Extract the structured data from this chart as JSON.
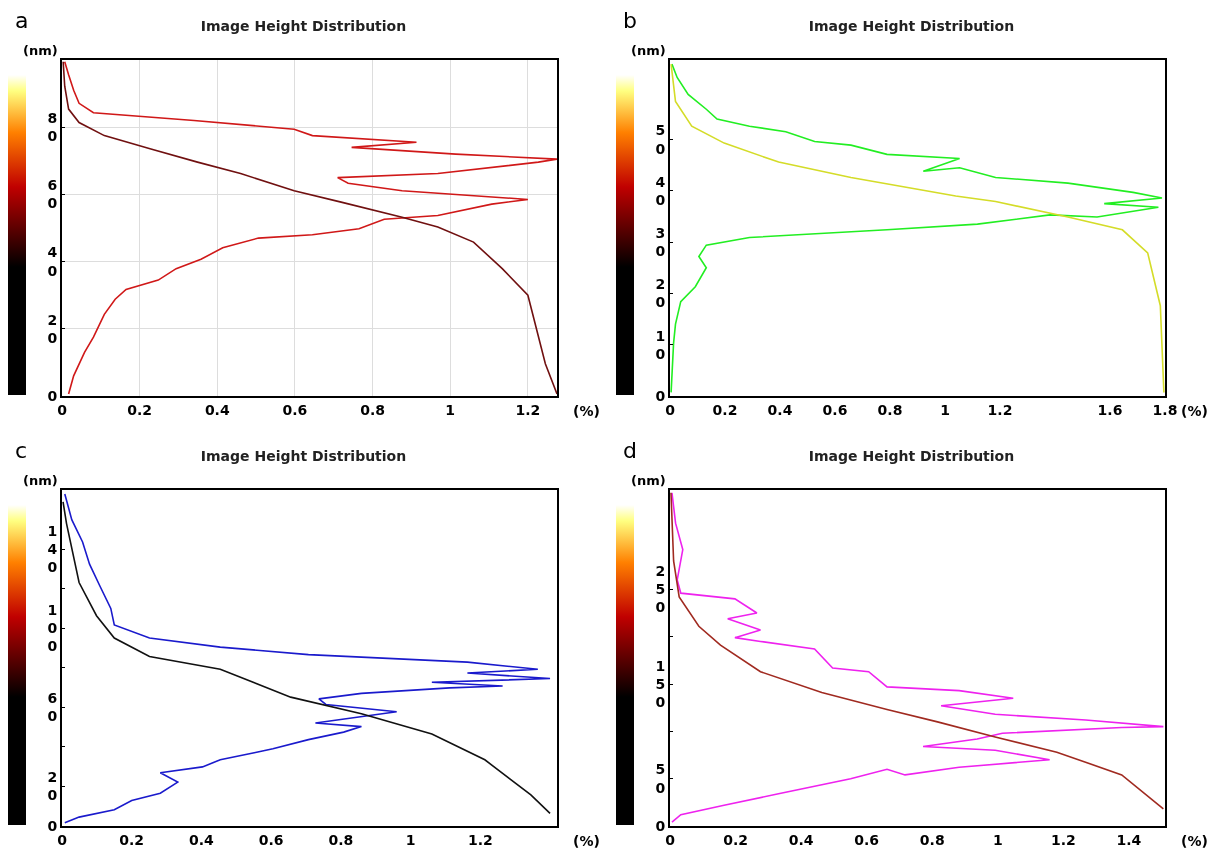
{
  "chart_data": [
    {
      "type": "line",
      "title": "Image Height Distribution",
      "xlabel": "(%)",
      "ylabel": "(nm)",
      "annotations": [
        "a"
      ],
      "grid": true,
      "xlim": [
        0,
        1.275
      ],
      "ylim": [
        0,
        100
      ],
      "xticks": [
        0,
        0.2,
        0.4,
        0.6,
        0.8,
        1.0,
        1.2
      ],
      "yticks": [
        0,
        20,
        40,
        60,
        80
      ],
      "series": [
        {
          "color": "#d01818",
          "x": [
            0.017,
            0.03,
            0.058,
            0.081,
            0.109,
            0.137,
            0.165,
            0.248,
            0.294,
            0.358,
            0.414,
            0.506,
            0.645,
            0.765,
            0.83,
            0.968,
            1.107,
            1.2,
            0.876,
            0.737,
            0.71,
            0.968,
            1.227,
            1.275,
            1.014,
            0.746,
            0.913,
            0.645,
            0.598,
            0.34,
            0.081,
            0.044,
            0.03,
            0.017,
            0.007
          ],
          "values": [
            0.6,
            6,
            13,
            17.5,
            24.3,
            28.8,
            31.7,
            34.5,
            37.9,
            40.7,
            44.1,
            47,
            48,
            49.8,
            52.6,
            53.7,
            57.1,
            58.5,
            61.1,
            63.3,
            65,
            66.2,
            69.6,
            70.5,
            72,
            74,
            75.5,
            77.5,
            79.4,
            82,
            84.3,
            87.1,
            91,
            95.6,
            99.5
          ]
        },
        {
          "color": "#701010",
          "x": [
            1.275,
            1.245,
            1.2,
            1.134,
            1.06,
            0.968,
            0.876,
            0.719,
            0.598,
            0.46,
            0.349,
            0.229,
            0.109,
            0.044,
            0.017,
            0.007,
            0.003
          ],
          "values": [
            0.6,
            9.6,
            30,
            37.9,
            45.8,
            50.3,
            53.2,
            57.7,
            61.1,
            66.2,
            69.6,
            73.5,
            77.5,
            81.4,
            85.4,
            92.2,
            99.5
          ]
        }
      ]
    },
    {
      "type": "line",
      "title": "Image Height Distribution",
      "xlabel": "(%)",
      "ylabel": "(nm)",
      "annotations": [
        "b"
      ],
      "xlim": [
        0,
        1.8
      ],
      "ylim": [
        0,
        65.5
      ],
      "xticks": [
        0,
        0.2,
        0.4,
        0.6,
        0.8,
        1.0,
        1.2,
        1.6,
        1.8
      ],
      "yticks": [
        0,
        10,
        20,
        30,
        40,
        50
      ],
      "series": [
        {
          "color": "#22ee22",
          "x": [
            0.004,
            0.013,
            0.02,
            0.039,
            0.092,
            0.132,
            0.105,
            0.132,
            0.289,
            0.789,
            1.118,
            1.382,
            1.553,
            1.776,
            1.579,
            1.789,
            1.684,
            1.447,
            1.184,
            1.053,
            0.921,
            1.053,
            0.789,
            0.658,
            0.526,
            0.421,
            0.289,
            0.171,
            0.132,
            0.066,
            0.026,
            0.007
          ],
          "values": [
            0.7,
            10.3,
            14,
            18.4,
            21.3,
            25,
            27.2,
            29.4,
            30.9,
            32.4,
            33.5,
            35.3,
            34.9,
            36.8,
            37.5,
            38.6,
            39.7,
            41.5,
            42.6,
            44.5,
            43.8,
            46.3,
            47.1,
            48.9,
            49.6,
            51.5,
            52.6,
            54,
            55.9,
            58.8,
            62.1,
            64.7
          ]
        },
        {
          "color": "#d4dc28",
          "x": [
            1.796,
            1.783,
            1.737,
            1.645,
            1.447,
            1.184,
            1.039,
            0.658,
            0.395,
            0.197,
            0.079,
            0.02,
            0.004
          ],
          "values": [
            0.7,
            17.6,
            27.9,
            32.4,
            34.9,
            37.9,
            39,
            42.6,
            45.6,
            49.3,
            52.6,
            57.4,
            64.7
          ]
        }
      ]
    },
    {
      "type": "line",
      "title": "Image Height Distribution",
      "xlabel": "(%)",
      "ylabel": "(nm)",
      "annotations": [
        "c"
      ],
      "xlim": [
        0,
        1.42
      ],
      "ylim": [
        0,
        170
      ],
      "xticks": [
        0,
        0.2,
        0.4,
        0.6,
        0.8,
        1.0,
        1.2
      ],
      "yticks": [
        0,
        20,
        {
          "value": 40,
          "label": null
        },
        60,
        {
          "value": 80,
          "label": null
        },
        100,
        {
          "value": 120,
          "label": null
        },
        140
      ],
      "series": [
        {
          "color": "#1a1acc",
          "x": [
            0.008,
            0.049,
            0.15,
            0.2,
            0.282,
            0.332,
            0.282,
            0.403,
            0.454,
            0.555,
            0.605,
            0.707,
            0.808,
            0.859,
            0.727,
            0.96,
            0.757,
            0.737,
            0.859,
            1.112,
            1.264,
            1.061,
            1.4,
            1.163,
            1.365,
            1.163,
            0.707,
            0.454,
            0.251,
            0.15,
            0.14,
            0.109,
            0.079,
            0.059,
            0.028,
            0.008
          ],
          "values": [
            1.7,
            4.5,
            8.2,
            12.9,
            16.6,
            22.2,
            26.9,
            29.9,
            33.5,
            37.2,
            39.1,
            43.7,
            47.5,
            50.3,
            52.1,
            57.8,
            61.5,
            64.3,
            67.1,
            69.9,
            70.8,
            72.7,
            74.6,
            77.4,
            79.3,
            82.9,
            86.7,
            90.5,
            95.1,
            101.7,
            110.1,
            121.3,
            132.5,
            143.7,
            155,
            168
          ]
        },
        {
          "color": "#111111",
          "x": [
            1.4,
            1.345,
            1.213,
            1.061,
            0.859,
            0.656,
            0.454,
            0.251,
            0.15,
            0.099,
            0.049,
            0.013,
            0.003
          ],
          "values": [
            6.4,
            15.7,
            33.5,
            46.5,
            56.8,
            65.2,
            79.3,
            85.8,
            95.1,
            106.4,
            123.2,
            153,
            164
          ]
        }
      ]
    },
    {
      "type": "line",
      "title": "Image Height Distribution",
      "xlabel": "(%)",
      "ylabel": "(nm)",
      "annotations": [
        "d"
      ],
      "xlim": [
        0,
        1.51
      ],
      "ylim": [
        0,
        355
      ],
      "xticks": [
        0,
        0.2,
        0.4,
        0.6,
        0.8,
        1.0,
        1.2,
        1.4
      ],
      "yticks": [
        0,
        50,
        {
          "value": 100,
          "label": null
        },
        150,
        {
          "value": 200,
          "label": null
        },
        250
      ],
      "series": [
        {
          "color": "#ee22ee",
          "x": [
            0.006,
            0.033,
            0.165,
            0.331,
            0.551,
            0.662,
            0.717,
            0.882,
            1.158,
            0.992,
            0.772,
            0.937,
            1.014,
            1.378,
            1.505,
            1.268,
            0.992,
            0.827,
            1.047,
            0.882,
            0.662,
            0.606,
            0.496,
            0.441,
            0.276,
            0.198,
            0.276,
            0.176,
            0.265,
            0.198,
            0.033,
            0.022,
            0.039,
            0.017,
            0.006
          ],
          "values": [
            4,
            12,
            22,
            34,
            50,
            60,
            54,
            62,
            70,
            80,
            84,
            92,
            98,
            104,
            105,
            112,
            118,
            127,
            135,
            143,
            147,
            163,
            167,
            187,
            195,
            199,
            207,
            219,
            225,
            240,
            246,
            260,
            292,
            320,
            352
          ]
        },
        {
          "color": "#a02a20",
          "x": [
            1.505,
            1.378,
            1.18,
            0.992,
            0.816,
            0.662,
            0.463,
            0.276,
            0.154,
            0.088,
            0.028,
            0.011,
            0.003
          ],
          "values": [
            18,
            54,
            78,
            94,
            110,
            123,
            141,
            163,
            191,
            211,
            242,
            280,
            352
          ]
        }
      ]
    }
  ]
}
